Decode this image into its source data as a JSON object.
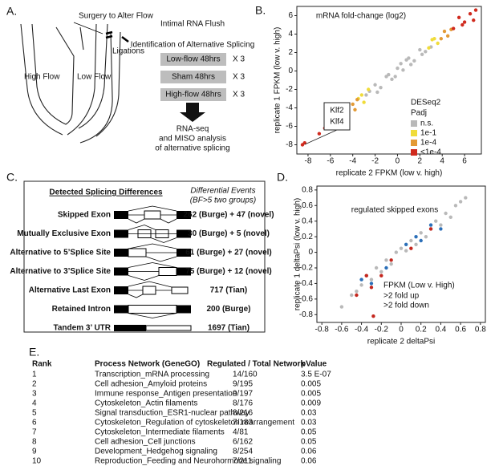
{
  "panel_a": {
    "label": "A.",
    "surgery": "Surgery to Alter Flow",
    "ligations": "Ligations",
    "high_flow": "High Flow",
    "low_flow": "Low Flow",
    "title": "Intimal RNA Flush",
    "subtitle": "Identification of Alternative Splicing",
    "groups": [
      {
        "name": "Low-flow 48hrs",
        "reps": "X 3"
      },
      {
        "name": "Sham 48hrs",
        "reps": "X 3"
      },
      {
        "name": "High-flow 48hrs",
        "reps": "X 3"
      }
    ],
    "result": [
      "RNA-seq",
      "and MISO analysis",
      "of alternative splicing"
    ]
  },
  "chart_data": [
    {
      "type": "scatter",
      "label": "B.",
      "title": "mRNA fold-change (log2)",
      "xlabel": "replicate 2 FPKM (low v. high)",
      "ylabel": "replicate 1 FPKM (low v. high)",
      "xlim": [
        -9,
        7.5
      ],
      "ylim": [
        -9,
        7
      ],
      "xticks": [
        -8,
        -6,
        -4,
        -2,
        0,
        2,
        4,
        6
      ],
      "yticks": [
        -8,
        -6,
        -4,
        -2,
        0,
        2,
        4,
        6
      ],
      "legend_title": [
        "DESeq2",
        "Padj"
      ],
      "annotations": [
        "Klf2",
        "Klf4"
      ],
      "series": [
        {
          "name": "n.s.",
          "color": "#b9b9b9",
          "x": [
            -2.5,
            -2,
            -1.5,
            -1,
            -0.5,
            0,
            0.5,
            1,
            1.5,
            2,
            2.5,
            -1.8,
            -0.8,
            0.3,
            1.2,
            2.2,
            -2.8,
            3,
            -0.2,
            0.8
          ],
          "values": [
            -2.2,
            -1.5,
            -1.8,
            -0.6,
            -0.9,
            0.3,
            0.1,
            1.4,
            1.1,
            2.3,
            2.1,
            -2.3,
            -0.4,
            0.8,
            0.7,
            1.8,
            -2.6,
            2.6,
            -0.6,
            1.2
          ]
        },
        {
          "name": "1e-1",
          "color": "#f0dc3a",
          "x": [
            -3.5,
            -3,
            -2.6,
            2.8,
            3.3,
            3.6,
            -3.2,
            3.1
          ],
          "values": [
            -3,
            -3.4,
            -2,
            2.5,
            3.5,
            3,
            -2.6,
            3.4
          ]
        },
        {
          "name": "1e-4",
          "color": "#e39a35",
          "x": [
            -4,
            -3.8,
            -4.4,
            3.9,
            4.2,
            4.5,
            -3.6,
            4.8
          ],
          "values": [
            -3.6,
            -4.2,
            -4,
            3.5,
            4.3,
            3.8,
            -3.1,
            4.5
          ]
        },
        {
          "name": "<1e-4",
          "color": "#d02a1e",
          "x": [
            -6,
            -5.5,
            -5,
            -4.8,
            -6.5,
            -7,
            -8.5,
            -8.3,
            5,
            5.5,
            6,
            6.5,
            7,
            5.8,
            6.8,
            -5.8
          ],
          "values": [
            -5.5,
            -5.8,
            -4.3,
            -5,
            -6.2,
            -6.8,
            -8,
            -7.8,
            4.6,
            5.8,
            5.3,
            6.2,
            6.6,
            5,
            5.5,
            -5
          ]
        }
      ]
    },
    {
      "type": "scatter",
      "label": "D.",
      "title": "regulated skipped exons",
      "xlabel": "replicate 2 deltaPsi",
      "ylabel": "replicate 1 deltaPsi (low v. high)",
      "xlim": [
        -0.85,
        0.85
      ],
      "ylim": [
        -0.9,
        0.85
      ],
      "xticks": [
        -0.8,
        -0.6,
        -0.4,
        -0.2,
        0,
        0.2,
        0.4,
        0.6,
        0.8
      ],
      "yticks": [
        -0.8,
        -0.6,
        -0.4,
        -0.2,
        0,
        0.2,
        0.4,
        0.6,
        0.8
      ],
      "legend_title": [
        "FPKM (Low v. High)"
      ],
      "series": [
        {
          "color": "#b9b9b9",
          "x": [
            -0.5,
            -0.4,
            -0.35,
            -0.3,
            -0.25,
            -0.2,
            -0.15,
            -0.1,
            -0.05,
            0,
            0.05,
            0.1,
            0.15,
            0.2,
            0.25,
            0.3,
            0.35,
            0.4,
            0.45,
            0.5,
            0.55,
            -0.6,
            -0.45,
            0.6,
            0.65
          ],
          "values": [
            -0.55,
            -0.42,
            -0.3,
            -0.35,
            -0.2,
            -0.25,
            -0.1,
            -0.15,
            0,
            0.05,
            0.02,
            0.15,
            0.1,
            0.25,
            0.2,
            0.3,
            0.4,
            0.35,
            0.5,
            0.45,
            0.6,
            -0.7,
            -0.5,
            0.65,
            0.7
          ]
        },
        {
          "name": ">2 fold up",
          "color": "#c4261d",
          "x": [
            -0.45,
            -0.35,
            -0.2,
            -0.1,
            0.1,
            0.3,
            -0.3,
            -0.28
          ],
          "values": [
            -0.55,
            -0.3,
            -0.3,
            -0.1,
            0.05,
            0.3,
            -0.45,
            -0.82
          ]
        },
        {
          "name": ">2 fold down",
          "color": "#2b6fb8",
          "x": [
            -0.4,
            -0.15,
            0.05,
            0.15,
            0.2,
            0.3,
            0.4,
            -0.3
          ],
          "values": [
            -0.35,
            -0.2,
            0.1,
            0.2,
            0.15,
            0.35,
            0.3,
            -0.4
          ]
        }
      ]
    }
  ],
  "panel_c": {
    "label": "C.",
    "header": "Detected Splicing Differences",
    "events_header": [
      "Differential Events",
      "(BF>5 two groups)"
    ],
    "rows": [
      {
        "type": "Skipped Exon",
        "events": "262 (Burge) + 47 (novel)"
      },
      {
        "type": "Mutually Exclusive Exon",
        "events": "30 (Burge) + 5 (novel)"
      },
      {
        "type": "Alternative to 5’Splice Site",
        "events": "61 (Burge) + 27 (novel)"
      },
      {
        "type": "Alternative to 3’Splice Site",
        "events": "75 (Burge) + 12 (novel)"
      },
      {
        "type": "Alternative Last Exon",
        "events": "717 (Tian)"
      },
      {
        "type": "Retained Intron",
        "events": "200 (Burge)"
      },
      {
        "type": "Tandem 3’ UTR",
        "events": "1697 (Tian)"
      }
    ]
  },
  "panel_e": {
    "label": "E.",
    "columns": [
      "Rank",
      "Process Network (GeneGO)",
      "Regulated / Total Network",
      "pValue"
    ],
    "rows": [
      [
        "1",
        "Transcription_mRNA processing",
        "14/160",
        "3.5 E-07"
      ],
      [
        "2",
        "Cell adhesion_Amyloid proteins",
        "9/195",
        "0.005"
      ],
      [
        "3",
        "Immune response_Antigen presentation",
        "9/197",
        "0.005"
      ],
      [
        "4",
        "Cytoskeleton_Actin filaments",
        "8/176",
        "0.009"
      ],
      [
        "5",
        "Signal transduction_ESR1-nuclear pathway",
        "8/216",
        "0.03"
      ],
      [
        "6",
        "Cytoskeleton_Regulation of cytoskeleton rearrangement",
        "7/183",
        "0.03"
      ],
      [
        "7",
        "Cytoskeleton_Intermediate filaments",
        "4/81",
        "0.05"
      ],
      [
        "8",
        "Cell adhesion_Cell junctions",
        "6/162",
        "0.05"
      ],
      [
        "9",
        "Development_Hedgehog signaling",
        "8/254",
        "0.06"
      ],
      [
        "10",
        "Reproduction_Feeding and Neurohormone signaling",
        "7/211",
        "0.06"
      ]
    ]
  }
}
